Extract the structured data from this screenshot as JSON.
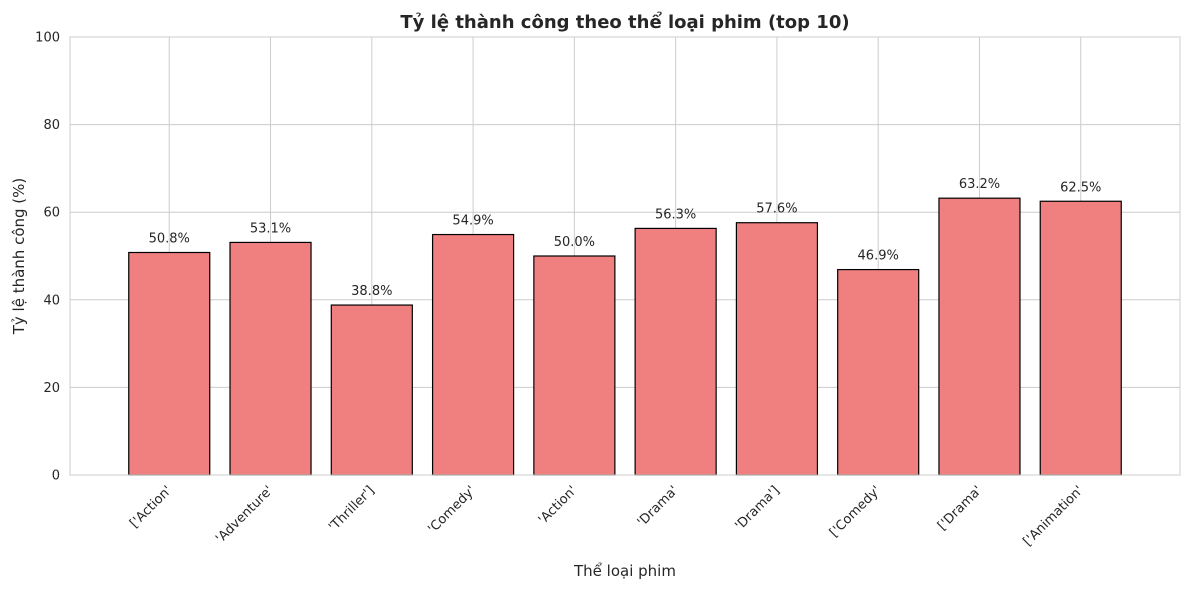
{
  "chart_data": {
    "type": "bar",
    "title": "Tỷ lệ thành công theo thể loại phim (top 10)",
    "xlabel": "Thể loại phim",
    "ylabel": "Tỷ lệ thành công (%)",
    "ylim": [
      0,
      100
    ],
    "yticks": [
      0,
      20,
      40,
      60,
      80,
      100
    ],
    "categories": [
      "['Action'",
      "'Adventure'",
      "'Thriller']",
      "'Comedy'",
      "'Action'",
      "'Drama'",
      "'Drama']",
      "['Comedy'",
      "['Drama'",
      "['Animation'"
    ],
    "values": [
      50.8,
      53.1,
      38.8,
      54.9,
      50.0,
      56.3,
      57.6,
      46.9,
      63.2,
      62.5
    ],
    "data_labels": [
      "50.8%",
      "53.1%",
      "38.8%",
      "54.9%",
      "50.0%",
      "56.3%",
      "57.6%",
      "46.9%",
      "63.2%",
      "62.5%"
    ],
    "grid": true,
    "bar_color": "#f08080",
    "edge_color": "#000000"
  }
}
